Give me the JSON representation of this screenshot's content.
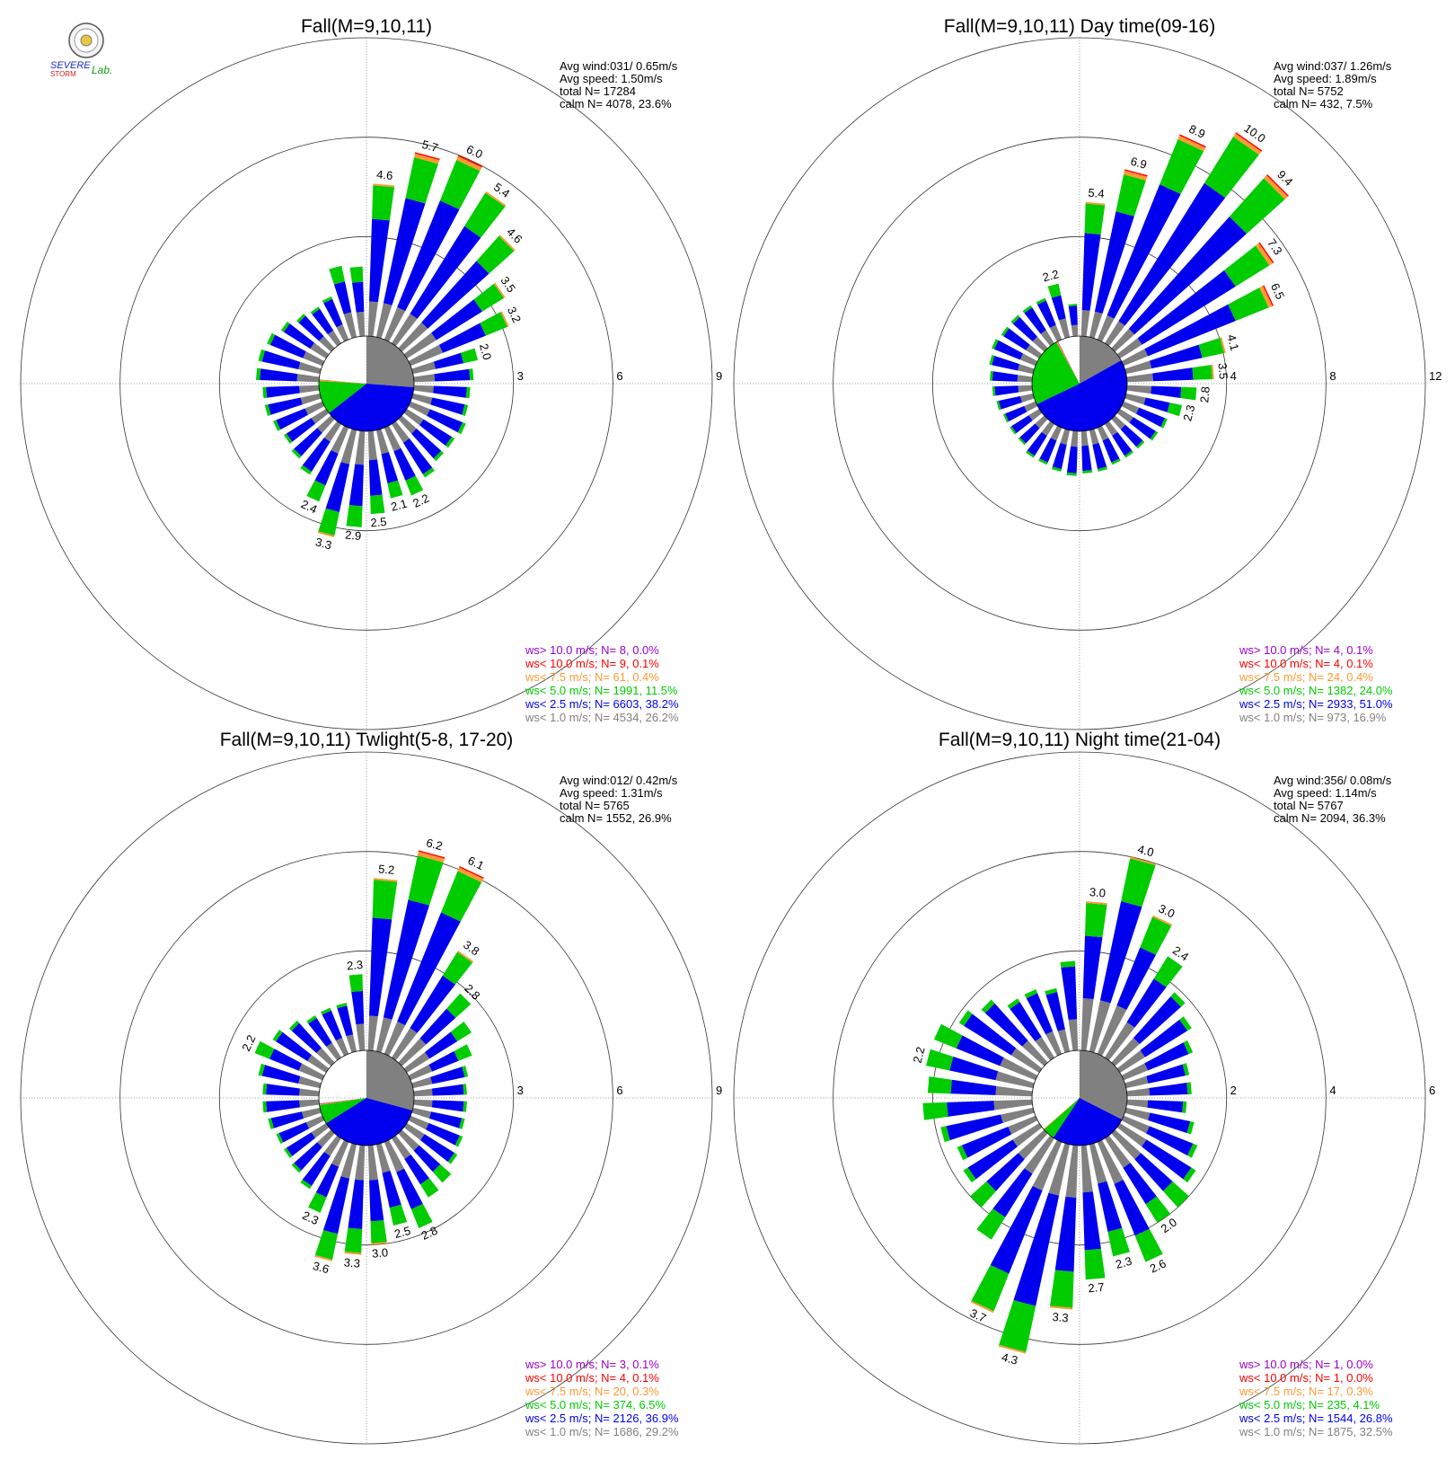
{
  "logo": {
    "text": "SEVERE STORM Lab."
  },
  "legend_classes": [
    {
      "label": "ws> 10.0 m/s; N=",
      "color": "#9900cc"
    },
    {
      "label": "ws< 10.0 m/s; N=",
      "color": "#ff0000"
    },
    {
      "label": "ws<  7.5 m/s; N=",
      "color": "#ff9933"
    },
    {
      "label": "ws<  5.0 m/s; N=",
      "color": "#00cc00"
    },
    {
      "label": "ws<  2.5 m/s; N=",
      "color": "#0000ee"
    },
    {
      "label": "ws<  1.0 m/s; N=",
      "color": "#808080"
    }
  ],
  "chart_data": [
    {
      "type": "windrose",
      "title": "Fall(M=9,10,11)",
      "stats": [
        "Avg wind:031/ 0.65m/s",
        "Avg speed: 1.50m/s",
        "total N=      17284",
        "calm N=   4078,  23.6%"
      ],
      "ring_values": [
        3,
        6,
        9
      ],
      "rmax": 9,
      "legend": [
        {
          "n": 8,
          "pct": "0.0%"
        },
        {
          "n": 9,
          "pct": "0.1%"
        },
        {
          "n": 61,
          "pct": "0.4%"
        },
        {
          "n": 1991,
          "pct": "11.5%"
        },
        {
          "n": 6603,
          "pct": "38.2%"
        },
        {
          "n": 4534,
          "pct": "26.2%"
        }
      ],
      "calm_pie": [
        26.2,
        38.2,
        11.5,
        0.4,
        0.1,
        0.0
      ],
      "sectors": [
        {
          "dir": 5,
          "total": 4.6,
          "label": "4.6"
        },
        {
          "dir": 15,
          "total": 5.7,
          "label": "5.7"
        },
        {
          "dir": 25,
          "total": 6.0,
          "label": "6.0"
        },
        {
          "dir": 35,
          "total": 5.4,
          "label": "5.4"
        },
        {
          "dir": 45,
          "total": 4.6,
          "label": "4.6"
        },
        {
          "dir": 55,
          "total": 3.5,
          "label": "3.5"
        },
        {
          "dir": 65,
          "total": 3.2,
          "label": "3.2"
        },
        {
          "dir": 75,
          "total": 2.0,
          "label": "2.0"
        },
        {
          "dir": 85,
          "total": 1.8
        },
        {
          "dir": 95,
          "total": 1.7
        },
        {
          "dir": 105,
          "total": 1.7
        },
        {
          "dir": 115,
          "total": 1.8
        },
        {
          "dir": 125,
          "total": 1.7
        },
        {
          "dir": 135,
          "total": 1.7
        },
        {
          "dir": 145,
          "total": 1.9
        },
        {
          "dir": 155,
          "total": 2.2,
          "label": "2.2"
        },
        {
          "dir": 165,
          "total": 2.1,
          "label": "2.1"
        },
        {
          "dir": 175,
          "total": 2.5,
          "label": "2.5"
        },
        {
          "dir": 185,
          "total": 2.9,
          "label": "2.9"
        },
        {
          "dir": 195,
          "total": 3.3,
          "label": "3.3"
        },
        {
          "dir": 205,
          "total": 2.4,
          "label": "2.4"
        },
        {
          "dir": 215,
          "total": 1.8
        },
        {
          "dir": 225,
          "total": 1.6
        },
        {
          "dir": 235,
          "total": 1.5
        },
        {
          "dir": 245,
          "total": 1.6
        },
        {
          "dir": 255,
          "total": 1.7
        },
        {
          "dir": 265,
          "total": 1.7
        },
        {
          "dir": 275,
          "total": 1.9
        },
        {
          "dir": 285,
          "total": 1.9
        },
        {
          "dir": 295,
          "total": 1.8
        },
        {
          "dir": 305,
          "total": 1.6
        },
        {
          "dir": 315,
          "total": 1.4
        },
        {
          "dir": 325,
          "total": 1.3
        },
        {
          "dir": 335,
          "total": 1.4
        },
        {
          "dir": 345,
          "total": 2.2
        },
        {
          "dir": 355,
          "total": 2.1
        }
      ]
    },
    {
      "type": "windrose",
      "title": "Fall(M=9,10,11) Day time(09-16)",
      "stats": [
        "Avg wind:037/ 1.26m/s",
        "Avg speed: 1.89m/s",
        "total N=       5752",
        "calm N=    432,   7.5%"
      ],
      "ring_values": [
        4,
        8,
        12
      ],
      "rmax": 12,
      "legend": [
        {
          "n": 4,
          "pct": "0.1%"
        },
        {
          "n": 4,
          "pct": "0.1%"
        },
        {
          "n": 24,
          "pct": "0.4%"
        },
        {
          "n": 1382,
          "pct": "24.0%"
        },
        {
          "n": 2933,
          "pct": "51.0%"
        },
        {
          "n": 973,
          "pct": "16.9%"
        }
      ],
      "calm_pie": [
        16.9,
        51.0,
        24.0,
        0.4,
        0.1,
        0.1
      ],
      "sectors": [
        {
          "dir": 5,
          "total": 5.4,
          "label": "5.4"
        },
        {
          "dir": 15,
          "total": 6.9,
          "label": "6.9"
        },
        {
          "dir": 25,
          "total": 8.9,
          "label": "8.9"
        },
        {
          "dir": 35,
          "total": 10.0,
          "label": "10.0"
        },
        {
          "dir": 45,
          "total": 9.4,
          "label": "9.4"
        },
        {
          "dir": 55,
          "total": 7.3,
          "label": "7.3"
        },
        {
          "dir": 65,
          "total": 6.5,
          "label": "6.5"
        },
        {
          "dir": 75,
          "total": 4.1,
          "label": "4.1"
        },
        {
          "dir": 85,
          "total": 3.5,
          "label": "3.5"
        },
        {
          "dir": 95,
          "total": 2.8,
          "label": "2.8"
        },
        {
          "dir": 105,
          "total": 2.3,
          "label": "2.3"
        },
        {
          "dir": 115,
          "total": 1.9
        },
        {
          "dir": 125,
          "total": 1.8
        },
        {
          "dir": 135,
          "total": 1.6
        },
        {
          "dir": 145,
          "total": 1.6
        },
        {
          "dir": 155,
          "total": 1.6
        },
        {
          "dir": 165,
          "total": 1.7
        },
        {
          "dir": 175,
          "total": 1.7
        },
        {
          "dir": 185,
          "total": 1.8
        },
        {
          "dir": 195,
          "total": 1.7
        },
        {
          "dir": 205,
          "total": 1.6
        },
        {
          "dir": 215,
          "total": 1.6
        },
        {
          "dir": 225,
          "total": 1.4
        },
        {
          "dir": 235,
          "total": 1.4
        },
        {
          "dir": 245,
          "total": 1.4
        },
        {
          "dir": 255,
          "total": 1.5
        },
        {
          "dir": 265,
          "total": 1.6
        },
        {
          "dir": 275,
          "total": 1.7
        },
        {
          "dir": 285,
          "total": 1.8
        },
        {
          "dir": 295,
          "total": 1.9
        },
        {
          "dir": 305,
          "total": 1.8
        },
        {
          "dir": 315,
          "total": 1.8
        },
        {
          "dir": 325,
          "total": 1.8
        },
        {
          "dir": 335,
          "total": 1.8
        },
        {
          "dir": 345,
          "total": 2.2,
          "label": "2.2"
        },
        {
          "dir": 355,
          "total": 1.3
        }
      ]
    },
    {
      "type": "windrose",
      "title": "Fall(M=9,10,11) Twlight(5-8, 17-20)",
      "stats": [
        "Avg wind:012/ 0.42m/s",
        "Avg speed: 1.31m/s",
        "total N=       5765",
        "calm N=   1552,  26.9%"
      ],
      "ring_values": [
        3,
        6,
        9
      ],
      "rmax": 9,
      "legend": [
        {
          "n": 3,
          "pct": "0.1%"
        },
        {
          "n": 4,
          "pct": "0.1%"
        },
        {
          "n": 20,
          "pct": "0.3%"
        },
        {
          "n": 374,
          "pct": "6.5%"
        },
        {
          "n": 2126,
          "pct": "36.9%"
        },
        {
          "n": 1686,
          "pct": "29.2%"
        }
      ],
      "calm_pie": [
        29.2,
        36.9,
        6.5,
        0.3,
        0.1,
        0.1
      ],
      "sectors": [
        {
          "dir": 5,
          "total": 5.2,
          "label": "5.2"
        },
        {
          "dir": 15,
          "total": 6.2,
          "label": "6.2"
        },
        {
          "dir": 25,
          "total": 6.1,
          "label": "6.1"
        },
        {
          "dir": 35,
          "total": 3.8,
          "label": "3.8"
        },
        {
          "dir": 45,
          "total": 2.8,
          "label": "2.8"
        },
        {
          "dir": 55,
          "total": 2.3
        },
        {
          "dir": 65,
          "total": 2.0
        },
        {
          "dir": 75,
          "total": 1.7
        },
        {
          "dir": 85,
          "total": 1.6
        },
        {
          "dir": 95,
          "total": 1.6
        },
        {
          "dir": 105,
          "total": 1.6
        },
        {
          "dir": 115,
          "total": 1.7
        },
        {
          "dir": 125,
          "total": 1.8
        },
        {
          "dir": 135,
          "total": 2.0
        },
        {
          "dir": 145,
          "total": 2.1
        },
        {
          "dir": 155,
          "total": 2.8,
          "label": "2.8"
        },
        {
          "dir": 165,
          "total": 2.5,
          "label": "2.5"
        },
        {
          "dir": 175,
          "total": 3.0,
          "label": "3.0"
        },
        {
          "dir": 185,
          "total": 3.3,
          "label": "3.3"
        },
        {
          "dir": 195,
          "total": 3.6,
          "label": "3.6"
        },
        {
          "dir": 205,
          "total": 2.3,
          "label": "2.3"
        },
        {
          "dir": 215,
          "total": 1.8
        },
        {
          "dir": 225,
          "total": 1.6
        },
        {
          "dir": 235,
          "total": 1.5
        },
        {
          "dir": 245,
          "total": 1.5
        },
        {
          "dir": 255,
          "total": 1.6
        },
        {
          "dir": 265,
          "total": 1.7
        },
        {
          "dir": 275,
          "total": 1.7
        },
        {
          "dir": 285,
          "total": 1.9
        },
        {
          "dir": 295,
          "total": 2.2,
          "label": "2.2"
        },
        {
          "dir": 305,
          "total": 1.9
        },
        {
          "dir": 315,
          "total": 1.7
        },
        {
          "dir": 325,
          "total": 1.5
        },
        {
          "dir": 335,
          "total": 1.5
        },
        {
          "dir": 345,
          "total": 1.5
        },
        {
          "dir": 355,
          "total": 2.3,
          "label": "2.3"
        }
      ]
    },
    {
      "type": "windrose",
      "title": "Fall(M=9,10,11) Night time(21-04)",
      "stats": [
        "Avg wind:356/ 0.08m/s",
        "Avg speed: 1.14m/s",
        "total N=       5767",
        "calm N=   2094,  36.3%"
      ],
      "ring_values": [
        2,
        4,
        6
      ],
      "rmax": 6,
      "legend": [
        {
          "n": 1,
          "pct": "0.0%"
        },
        {
          "n": 1,
          "pct": "0.0%"
        },
        {
          "n": 17,
          "pct": "0.3%"
        },
        {
          "n": 235,
          "pct": "4.1%"
        },
        {
          "n": 1544,
          "pct": "26.8%"
        },
        {
          "n": 1875,
          "pct": "32.5%"
        }
      ],
      "calm_pie": [
        32.5,
        26.8,
        4.1,
        0.3,
        0.0,
        0.0
      ],
      "sectors": [
        {
          "dir": 5,
          "total": 3.0,
          "label": "3.0"
        },
        {
          "dir": 15,
          "total": 4.0,
          "label": "4.0"
        },
        {
          "dir": 25,
          "total": 3.0,
          "label": "3.0"
        },
        {
          "dir": 35,
          "total": 2.4,
          "label": "2.4"
        },
        {
          "dir": 45,
          "total": 1.9
        },
        {
          "dir": 55,
          "total": 1.7
        },
        {
          "dir": 65,
          "total": 1.5
        },
        {
          "dir": 75,
          "total": 1.3
        },
        {
          "dir": 85,
          "total": 1.3
        },
        {
          "dir": 95,
          "total": 1.2
        },
        {
          "dir": 105,
          "total": 1.4
        },
        {
          "dir": 115,
          "total": 1.6
        },
        {
          "dir": 125,
          "total": 1.8
        },
        {
          "dir": 135,
          "total": 2.0
        },
        {
          "dir": 145,
          "total": 2.0,
          "label": "2.0"
        },
        {
          "dir": 155,
          "total": 2.6,
          "label": "2.6"
        },
        {
          "dir": 165,
          "total": 2.3,
          "label": "2.3"
        },
        {
          "dir": 175,
          "total": 2.7,
          "label": "2.7"
        },
        {
          "dir": 185,
          "total": 3.3,
          "label": "3.3"
        },
        {
          "dir": 195,
          "total": 4.3,
          "label": "4.3"
        },
        {
          "dir": 205,
          "total": 3.7,
          "label": "3.7"
        },
        {
          "dir": 215,
          "total": 2.4
        },
        {
          "dir": 225,
          "total": 2.0
        },
        {
          "dir": 235,
          "total": 1.8
        },
        {
          "dir": 245,
          "total": 1.7
        },
        {
          "dir": 255,
          "total": 1.9
        },
        {
          "dir": 265,
          "total": 2.2
        },
        {
          "dir": 275,
          "total": 2.1
        },
        {
          "dir": 285,
          "total": 2.2,
          "label": "2.2"
        },
        {
          "dir": 295,
          "total": 2.2
        },
        {
          "dir": 305,
          "total": 1.9
        },
        {
          "dir": 315,
          "total": 1.7
        },
        {
          "dir": 325,
          "total": 1.4
        },
        {
          "dir": 335,
          "total": 1.4
        },
        {
          "dir": 345,
          "total": 1.3
        },
        {
          "dir": 355,
          "total": 1.8
        }
      ]
    }
  ]
}
